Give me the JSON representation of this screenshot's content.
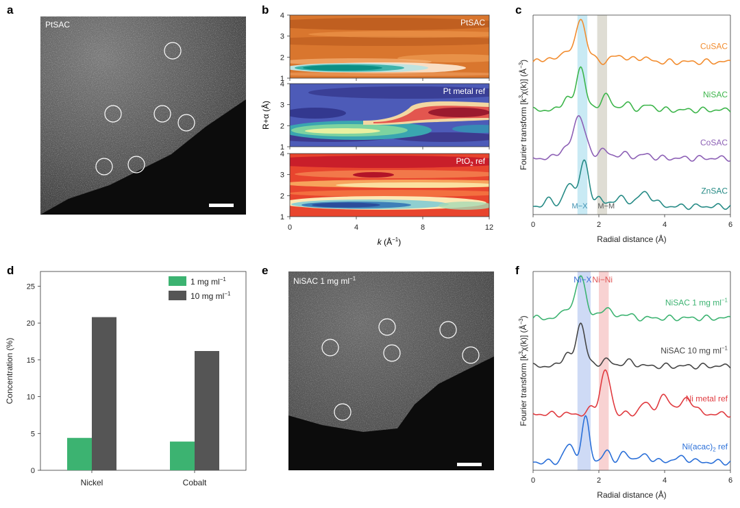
{
  "panel_letters": {
    "a": "a",
    "b": "b",
    "c": "c",
    "d": "d",
    "e": "e",
    "f": "f"
  },
  "panel_a": {
    "label": "PtSAC",
    "circles": 6,
    "scale_bar": true
  },
  "panel_e": {
    "label_main": "NiSAC 1 mg ml",
    "label_sup": "−1",
    "circles": 6,
    "scale_bar": true
  },
  "panel_b": {
    "xlabel_k": "k",
    "xlabel_rest": " (Å",
    "xlabel_sup": "−1",
    "xlabel_close": ")",
    "ylabel": "R+α (Å)",
    "sub1": {
      "label": "PtSAC",
      "colormap": "copper"
    },
    "sub2": {
      "label": "Pt metal ref",
      "colormap": "viridis-plasma"
    },
    "sub3": {
      "label_main": "PtO",
      "label_sub": "2",
      "label_end": " ref",
      "colormap": "spectral"
    }
  },
  "chart_data": [
    {
      "panel": "b",
      "type": "heatmap",
      "xlim": [
        0,
        12
      ],
      "ylim": [
        1,
        4
      ],
      "x_ticks": [
        0,
        4,
        8,
        12
      ],
      "y_ticks": [
        1,
        2,
        3,
        4
      ],
      "subplots": [
        "PtSAC",
        "Pt metal ref",
        "PtO2 ref"
      ]
    },
    {
      "panel": "c",
      "type": "line",
      "xlabel": "Radial distance (Å)",
      "ylabel_main": "Fourier transform [k",
      "ylabel_sup1": "3",
      "ylabel_mid": "χ(k)] (Å",
      "ylabel_sup2": "−3",
      "ylabel_end": ")",
      "xlim": [
        0,
        6
      ],
      "x_ticks": [
        0,
        2,
        4,
        6
      ],
      "bands": [
        {
          "label": "M−X",
          "x": [
            1.35,
            1.65
          ],
          "color": "#bfe6f2"
        },
        {
          "label": "M−M",
          "x": [
            1.95,
            2.25
          ],
          "color": "#d9d7cc"
        }
      ],
      "series": [
        {
          "name": "CuSAC",
          "color": "#f28c2e",
          "offset": 3,
          "peaks": [
            [
              1.45,
              0.15,
              1.0
            ],
            [
              1.0,
              0.12,
              0.3
            ],
            [
              0.5,
              0.15,
              0.1
            ],
            [
              1.8,
              0.1,
              0.1
            ],
            [
              2.6,
              0.2,
              0.15
            ],
            [
              3.3,
              0.2,
              0.1
            ]
          ]
        },
        {
          "name": "NiSAC",
          "color": "#3cb54a",
          "offset": 2,
          "peaks": [
            [
              1.45,
              0.14,
              1.0
            ],
            [
              1.0,
              0.12,
              0.3
            ],
            [
              2.2,
              0.15,
              0.35
            ],
            [
              2.8,
              0.15,
              0.15
            ],
            [
              3.5,
              0.2,
              0.1
            ]
          ]
        },
        {
          "name": "CoSAC",
          "color": "#8c5fb5",
          "offset": 1,
          "peaks": [
            [
              1.4,
              0.18,
              1.0
            ],
            [
              0.9,
              0.15,
              0.2
            ],
            [
              2.1,
              0.15,
              0.2
            ],
            [
              2.7,
              0.2,
              0.1
            ],
            [
              3.4,
              0.2,
              0.08
            ]
          ]
        },
        {
          "name": "ZnSAC",
          "color": "#258a85",
          "offset": 0,
          "peaks": [
            [
              1.55,
              0.15,
              1.0
            ],
            [
              1.1,
              0.15,
              0.5
            ],
            [
              0.5,
              0.15,
              0.15
            ],
            [
              2.0,
              0.1,
              0.2
            ],
            [
              2.6,
              0.2,
              0.2
            ],
            [
              3.4,
              0.25,
              0.3
            ]
          ]
        }
      ]
    },
    {
      "panel": "d",
      "type": "bar",
      "categories": [
        "Nickel",
        "Cobalt"
      ],
      "series": [
        {
          "name_main": "1 mg ml",
          "name_sup": "−1",
          "color": "#3cb371",
          "values": [
            4.4,
            3.9
          ]
        },
        {
          "name_main": "10 mg ml",
          "name_sup": "−1",
          "color": "#555555",
          "values": [
            20.8,
            16.2
          ]
        }
      ],
      "ylabel": "Concentration (%)",
      "ylim": [
        0,
        27
      ],
      "y_ticks": [
        0,
        5,
        10,
        15,
        20,
        25
      ]
    },
    {
      "panel": "f",
      "type": "line",
      "xlabel": "Radial distance (Å)",
      "ylabel_main": "Fourier transform [k",
      "ylabel_sup1": "3",
      "ylabel_mid": "χ(k)] (Å",
      "ylabel_sup2": "−3",
      "ylabel_end": ")",
      "xlim": [
        0,
        6
      ],
      "x_ticks": [
        0,
        2,
        4,
        6
      ],
      "bands": [
        {
          "label": "Ni−X",
          "x": [
            1.35,
            1.75
          ],
          "color": "#c5d3f3",
          "label_color": "#3a6fd8"
        },
        {
          "label": "Ni−Ni",
          "x": [
            2.0,
            2.3
          ],
          "color": "#f7caca",
          "label_color": "#e05454"
        }
      ],
      "series": [
        {
          "name_main": "NiSAC 1 mg ml",
          "name_sup": "−1",
          "color": "#3cb371",
          "offset": 3,
          "peaks": [
            [
              1.45,
              0.15,
              1.0
            ],
            [
              1.0,
              0.12,
              0.25
            ],
            [
              2.2,
              0.15,
              0.25
            ],
            [
              2.8,
              0.15,
              0.1
            ]
          ]
        },
        {
          "name_main": "NiSAC 10 mg ml",
          "name_sup": "−1",
          "color": "#444444",
          "offset": 2,
          "peaks": [
            [
              1.45,
              0.14,
              1.0
            ],
            [
              1.0,
              0.12,
              0.3
            ],
            [
              2.2,
              0.15,
              0.15
            ],
            [
              2.9,
              0.2,
              0.1
            ]
          ]
        },
        {
          "name_main": "Ni metal ref",
          "name_sup": "",
          "color": "#e0393e",
          "offset": 1,
          "peaks": [
            [
              2.2,
              0.15,
              1.0
            ],
            [
              1.8,
              0.1,
              0.15
            ],
            [
              3.4,
              0.15,
              0.25
            ],
            [
              4.0,
              0.2,
              0.4
            ],
            [
              4.7,
              0.2,
              0.35
            ]
          ]
        },
        {
          "name_main": "Ni(acac)",
          "name_sub": "2",
          "name_end": " ref",
          "name_sup": "",
          "color": "#2a6fd8",
          "offset": 0,
          "peaks": [
            [
              1.6,
              0.12,
              1.0
            ],
            [
              1.1,
              0.15,
              0.4
            ],
            [
              2.25,
              0.12,
              0.25
            ],
            [
              2.8,
              0.15,
              0.2
            ],
            [
              3.4,
              0.2,
              0.15
            ],
            [
              4.5,
              0.25,
              0.1
            ]
          ]
        }
      ]
    }
  ]
}
